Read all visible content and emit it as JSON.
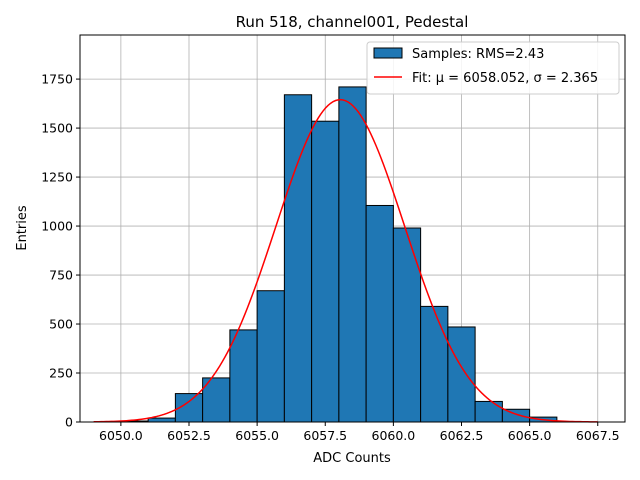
{
  "chart_data": {
    "type": "bar",
    "title": "Run 518, channel001, Pedestal",
    "xlabel": "ADC Counts",
    "ylabel": "Entries",
    "xlim": [
      6048.5,
      6068.5
    ],
    "ylim": [
      0,
      1975
    ],
    "grid": true,
    "legend_placement": "top-right",
    "x_ticks": [
      6050.0,
      6052.5,
      6055.0,
      6057.5,
      6060.0,
      6062.5,
      6065.0,
      6067.5
    ],
    "x_tick_labels": [
      "6050.0",
      "6052.5",
      "6055.0",
      "6057.5",
      "6060.0",
      "6062.5",
      "6065.0",
      "6067.5"
    ],
    "y_ticks": [
      0,
      250,
      500,
      750,
      1000,
      1250,
      1500,
      1750
    ],
    "y_tick_labels": [
      "0",
      "250",
      "500",
      "750",
      "1000",
      "1250",
      "1500",
      "1750"
    ],
    "histogram": {
      "name": "Samples: RMS=2.43",
      "color": "#1f77b4",
      "edge_color": "#000000",
      "bin_edges": [
        6050,
        6051,
        6052,
        6053,
        6054,
        6055,
        6056,
        6057,
        6058,
        6059,
        6060,
        6061,
        6062,
        6063,
        6064,
        6065,
        6066
      ],
      "counts": [
        5,
        20,
        145,
        225,
        470,
        670,
        1670,
        1535,
        1710,
        1105,
        990,
        590,
        485,
        105,
        65,
        25
      ]
    },
    "fit": {
      "name": "Fit: μ = 6058.052, σ = 2.365",
      "color": "#ff0000",
      "mu": 6058.052,
      "sigma": 2.365,
      "amplitude": 1645,
      "x_range": [
        6049.0,
        6067.5
      ]
    }
  }
}
